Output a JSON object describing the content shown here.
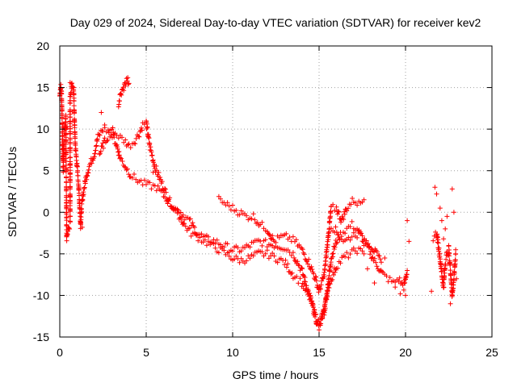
{
  "chart_data": {
    "type": "scatter",
    "title": "Day 029 of 2024, Sidereal Day-to-day VTEC variation (SDTVAR) for receiver kev2",
    "xlabel": "GPS time / hours",
    "ylabel": "SDTVAR / TECUs",
    "xlim": [
      0,
      25
    ],
    "ylim": [
      -15,
      20
    ],
    "xticks": [
      0,
      5,
      10,
      15,
      20,
      25
    ],
    "yticks": [
      -15,
      -10,
      -5,
      0,
      5,
      10,
      15,
      20
    ],
    "xtick_labels": [
      "0",
      "5",
      "10",
      "15",
      "20",
      "25"
    ],
    "ytick_labels": [
      "-15",
      "-10",
      "-5",
      "0",
      "5",
      "10",
      "15",
      "20"
    ],
    "grid": true,
    "marker": "+",
    "color": "#ff0000",
    "series": [
      {
        "name": "SDTVAR",
        "trace": [
          [
            0.0,
            14.0
          ],
          [
            0.05,
            15.2
          ],
          [
            0.1,
            14.5
          ],
          [
            0.15,
            10.0
          ],
          [
            0.2,
            5.2
          ],
          [
            0.25,
            9.0
          ],
          [
            0.3,
            10.0
          ],
          [
            0.35,
            11.5
          ],
          [
            0.4,
            -3.0
          ],
          [
            0.45,
            -2.5
          ],
          [
            0.5,
            -2.0
          ],
          [
            0.6,
            -1.5
          ],
          [
            0.6,
            14.0
          ],
          [
            0.7,
            15.5
          ],
          [
            0.8,
            15.0
          ],
          [
            0.85,
            11.0
          ],
          [
            0.9,
            8.0
          ],
          [
            1.0,
            5.5
          ],
          [
            1.1,
            3.0
          ],
          [
            1.2,
            -1.5
          ],
          [
            1.3,
            1.5
          ],
          [
            1.5,
            4.0
          ],
          [
            1.7,
            5.5
          ],
          [
            2.0,
            7.0
          ],
          [
            2.2,
            9.0
          ],
          [
            2.5,
            10.0
          ],
          [
            2.8,
            9.8
          ],
          [
            3.0,
            10.0
          ],
          [
            3.2,
            9.5
          ],
          [
            3.5,
            9.0
          ],
          [
            3.8,
            8.5
          ],
          [
            4.0,
            8.0
          ],
          [
            4.3,
            8.5
          ],
          [
            4.6,
            9.5
          ],
          [
            4.8,
            10.5
          ],
          [
            5.0,
            10.8
          ],
          [
            5.2,
            8.0
          ],
          [
            5.5,
            5.5
          ],
          [
            5.8,
            4.0
          ],
          [
            6.0,
            3.0
          ],
          [
            6.3,
            1.5
          ],
          [
            6.6,
            0.5
          ],
          [
            7.0,
            0.0
          ],
          [
            7.2,
            -0.5
          ],
          [
            7.5,
            -1.0
          ],
          [
            7.8,
            -2.0
          ],
          [
            8.0,
            -2.5
          ],
          [
            8.3,
            -3.0
          ],
          [
            8.6,
            -3.3
          ],
          [
            9.0,
            -3.5
          ],
          [
            9.5,
            -4.0
          ],
          [
            10.0,
            -4.5
          ],
          [
            10.5,
            -4.5
          ],
          [
            11.0,
            -4.0
          ],
          [
            11.5,
            -3.5
          ],
          [
            12.0,
            -3.8
          ],
          [
            12.5,
            -4.0
          ],
          [
            13.0,
            -4.2
          ],
          [
            13.5,
            -5.0
          ],
          [
            14.0,
            -7.0
          ],
          [
            14.3,
            -9.0
          ],
          [
            14.6,
            -11.0
          ],
          [
            14.9,
            -13.5
          ],
          [
            15.1,
            -13.0
          ],
          [
            15.3,
            -12.0
          ],
          [
            15.5,
            -9.0
          ],
          [
            15.7,
            -5.5
          ],
          [
            16.0,
            -3.5
          ],
          [
            16.3,
            -2.5
          ],
          [
            16.6,
            -2.0
          ],
          [
            16.9,
            -1.5
          ],
          [
            17.2,
            -2.0
          ],
          [
            17.5,
            -3.0
          ],
          [
            17.8,
            -4.0
          ],
          [
            18.1,
            -5.5
          ],
          [
            18.4,
            -6.5
          ],
          [
            18.7,
            -7.5
          ],
          [
            19.0,
            -8.0
          ],
          [
            19.3,
            -8.5
          ],
          [
            19.6,
            -8.0
          ],
          [
            19.9,
            -9.0
          ],
          [
            20.1,
            -7.0
          ]
        ],
        "trace_b": [
          [
            2.3,
            7.0
          ],
          [
            2.6,
            8.5
          ],
          [
            2.9,
            9.5
          ],
          [
            3.1,
            9.0
          ],
          [
            3.3,
            8.0
          ],
          [
            3.5,
            6.5
          ],
          [
            3.8,
            5.5
          ],
          [
            4.1,
            4.5
          ],
          [
            4.4,
            4.0
          ],
          [
            4.8,
            3.5
          ],
          [
            5.2,
            3.2
          ],
          [
            5.6,
            3.0
          ],
          [
            6.0,
            2.0
          ],
          [
            6.4,
            1.0
          ],
          [
            6.8,
            0.0
          ],
          [
            7.2,
            -1.5
          ],
          [
            7.6,
            -2.5
          ],
          [
            8.0,
            -3.0
          ],
          [
            8.4,
            -3.5
          ],
          [
            8.8,
            -4.0
          ],
          [
            9.2,
            -4.5
          ],
          [
            9.6,
            -5.0
          ],
          [
            10.0,
            -5.5
          ],
          [
            10.5,
            -5.8
          ],
          [
            11.0,
            -5.5
          ],
          [
            11.5,
            -5.0
          ],
          [
            12.0,
            -5.0
          ],
          [
            12.5,
            -5.5
          ],
          [
            13.0,
            -6.0
          ],
          [
            13.5,
            -7.5
          ],
          [
            14.0,
            -8.5
          ],
          [
            14.5,
            -10.5
          ],
          [
            15.0,
            -14.0
          ],
          [
            15.3,
            -11.5
          ],
          [
            15.6,
            -8.5
          ],
          [
            16.0,
            -6.5
          ],
          [
            16.4,
            -5.5
          ],
          [
            16.8,
            -5.0
          ],
          [
            17.2,
            -4.5
          ],
          [
            17.6,
            -5.0
          ]
        ],
        "trace_c": [
          [
            3.4,
            13.0
          ],
          [
            3.5,
            14.0
          ],
          [
            3.6,
            14.5
          ],
          [
            3.7,
            15.0
          ],
          [
            3.8,
            15.5
          ],
          [
            3.9,
            16.0
          ],
          [
            4.0,
            15.5
          ]
        ],
        "trace_d": [
          [
            9.2,
            1.5
          ],
          [
            9.6,
            1.0
          ],
          [
            10.0,
            0.5
          ],
          [
            10.4,
            0.0
          ],
          [
            10.8,
            -0.5
          ],
          [
            11.2,
            -0.5
          ],
          [
            11.6,
            -1.5
          ],
          [
            12.0,
            -2.0
          ],
          [
            12.4,
            -3.5
          ],
          [
            12.8,
            -3.0
          ],
          [
            13.2,
            -3.0
          ],
          [
            13.6,
            -3.5
          ],
          [
            14.0,
            -4.5
          ],
          [
            14.4,
            -6.0
          ],
          [
            14.8,
            -8.0
          ],
          [
            15.0,
            -9.5
          ],
          [
            15.3,
            -7.5
          ],
          [
            15.5,
            -3.5
          ],
          [
            15.7,
            0.5
          ],
          [
            16.0,
            0.5
          ],
          [
            16.3,
            -1.0
          ],
          [
            16.6,
            0.5
          ],
          [
            17.0,
            1.5
          ],
          [
            17.3,
            1.0
          ],
          [
            17.6,
            1.5
          ]
        ],
        "trace_e": [
          [
            15.6,
            -1.5
          ],
          [
            15.9,
            -2.0
          ],
          [
            16.2,
            -3.0
          ],
          [
            16.5,
            -3.5
          ],
          [
            16.8,
            -3.0
          ],
          [
            17.1,
            -2.5
          ],
          [
            17.4,
            -3.0
          ],
          [
            17.7,
            -3.5
          ],
          [
            18.0,
            -4.0
          ],
          [
            18.3,
            -5.0
          ],
          [
            18.6,
            -6.0
          ]
        ],
        "trace_f": [
          [
            21.6,
            -3.0
          ],
          [
            21.8,
            -2.5
          ],
          [
            21.9,
            -4.0
          ],
          [
            22.0,
            -5.5
          ],
          [
            22.1,
            -7.5
          ],
          [
            22.2,
            -9.0
          ],
          [
            22.3,
            -6.0
          ],
          [
            22.4,
            -5.0
          ],
          [
            22.5,
            -4.5
          ],
          [
            22.6,
            -7.0
          ],
          [
            22.7,
            -10.0
          ],
          [
            22.8,
            -8.0
          ],
          [
            22.9,
            -5.0
          ]
        ],
        "scatter_pts": [
          [
            0.6,
            15.6
          ],
          [
            1.3,
            -1.8
          ],
          [
            2.4,
            12.0
          ],
          [
            2.6,
            10.5
          ],
          [
            3.1,
            9.6
          ],
          [
            5.4,
            4.8
          ],
          [
            17.6,
            -4.0
          ],
          [
            17.8,
            -6.8
          ],
          [
            18.2,
            -8.5
          ],
          [
            18.8,
            -5.5
          ],
          [
            19.4,
            -9.0
          ],
          [
            19.7,
            -9.8
          ],
          [
            20.0,
            -10.0
          ],
          [
            20.1,
            -1.0
          ],
          [
            20.2,
            -3.5
          ],
          [
            21.5,
            -9.5
          ],
          [
            21.7,
            3.0
          ],
          [
            21.8,
            2.2
          ],
          [
            22.0,
            0.5
          ],
          [
            22.1,
            -1.0
          ],
          [
            22.2,
            -3.2
          ],
          [
            22.3,
            -2.0
          ],
          [
            22.4,
            -0.5
          ],
          [
            22.5,
            -4.0
          ],
          [
            22.6,
            -11.0
          ],
          [
            22.7,
            2.8
          ],
          [
            22.8,
            0.0
          ],
          [
            22.9,
            -4.5
          ],
          [
            22.95,
            -8.0
          ]
        ]
      }
    ]
  }
}
